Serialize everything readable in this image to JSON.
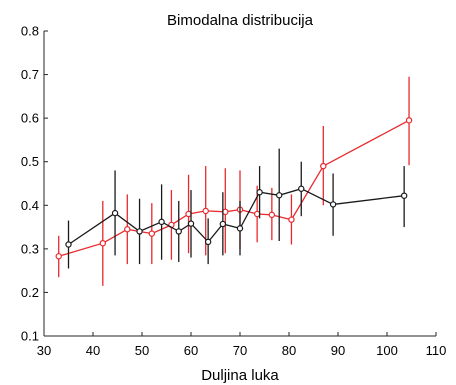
{
  "chart_data": {
    "type": "line",
    "title": "Bimodalna distribucija",
    "xlabel": "Duljina luka",
    "ylabel": "",
    "xlim": [
      30,
      110
    ],
    "ylim": [
      0.1,
      0.8
    ],
    "xticks": [
      30,
      40,
      50,
      60,
      70,
      80,
      90,
      100,
      110
    ],
    "yticks": [
      0.1,
      0.2,
      0.3,
      0.4,
      0.5,
      0.6,
      0.7,
      0.8
    ],
    "grid": false,
    "series": [
      {
        "color": "#e8292e",
        "points": [
          {
            "x": 33,
            "y": 0.283,
            "lo": 0.235,
            "hi": 0.33
          },
          {
            "x": 42,
            "y": 0.313,
            "lo": 0.215,
            "hi": 0.41
          },
          {
            "x": 47,
            "y": 0.345,
            "lo": 0.265,
            "hi": 0.425
          },
          {
            "x": 52,
            "y": 0.335,
            "lo": 0.265,
            "hi": 0.405
          },
          {
            "x": 56,
            "y": 0.355,
            "lo": 0.275,
            "hi": 0.435
          },
          {
            "x": 59.5,
            "y": 0.38,
            "lo": 0.29,
            "hi": 0.47
          },
          {
            "x": 63,
            "y": 0.387,
            "lo": 0.285,
            "hi": 0.49
          },
          {
            "x": 67,
            "y": 0.385,
            "lo": 0.29,
            "hi": 0.485
          },
          {
            "x": 70,
            "y": 0.39,
            "lo": 0.3,
            "hi": 0.48
          },
          {
            "x": 73.5,
            "y": 0.38,
            "lo": 0.315,
            "hi": 0.445
          },
          {
            "x": 76.5,
            "y": 0.378,
            "lo": 0.32,
            "hi": 0.44
          },
          {
            "x": 80.5,
            "y": 0.367,
            "lo": 0.31,
            "hi": 0.425
          },
          {
            "x": 87,
            "y": 0.49,
            "lo": 0.4,
            "hi": 0.582
          },
          {
            "x": 104.5,
            "y": 0.595,
            "lo": 0.492,
            "hi": 0.695
          }
        ]
      },
      {
        "color": "#1a1a1a",
        "points": [
          {
            "x": 35,
            "y": 0.31,
            "lo": 0.255,
            "hi": 0.365
          },
          {
            "x": 44.5,
            "y": 0.382,
            "lo": 0.285,
            "hi": 0.48
          },
          {
            "x": 49.5,
            "y": 0.34,
            "lo": 0.265,
            "hi": 0.415
          },
          {
            "x": 54,
            "y": 0.362,
            "lo": 0.275,
            "hi": 0.448
          },
          {
            "x": 57.5,
            "y": 0.34,
            "lo": 0.27,
            "hi": 0.41
          },
          {
            "x": 60,
            "y": 0.358,
            "lo": 0.28,
            "hi": 0.435
          },
          {
            "x": 63.5,
            "y": 0.316,
            "lo": 0.265,
            "hi": 0.37
          },
          {
            "x": 66.5,
            "y": 0.357,
            "lo": 0.285,
            "hi": 0.43
          },
          {
            "x": 70,
            "y": 0.347,
            "lo": 0.285,
            "hi": 0.41
          },
          {
            "x": 74,
            "y": 0.43,
            "lo": 0.37,
            "hi": 0.49
          },
          {
            "x": 78,
            "y": 0.423,
            "lo": 0.318,
            "hi": 0.53
          },
          {
            "x": 82.5,
            "y": 0.438,
            "lo": 0.375,
            "hi": 0.5
          },
          {
            "x": 89,
            "y": 0.402,
            "lo": 0.33,
            "hi": 0.473
          },
          {
            "x": 103.5,
            "y": 0.422,
            "lo": 0.35,
            "hi": 0.49
          }
        ]
      }
    ]
  }
}
